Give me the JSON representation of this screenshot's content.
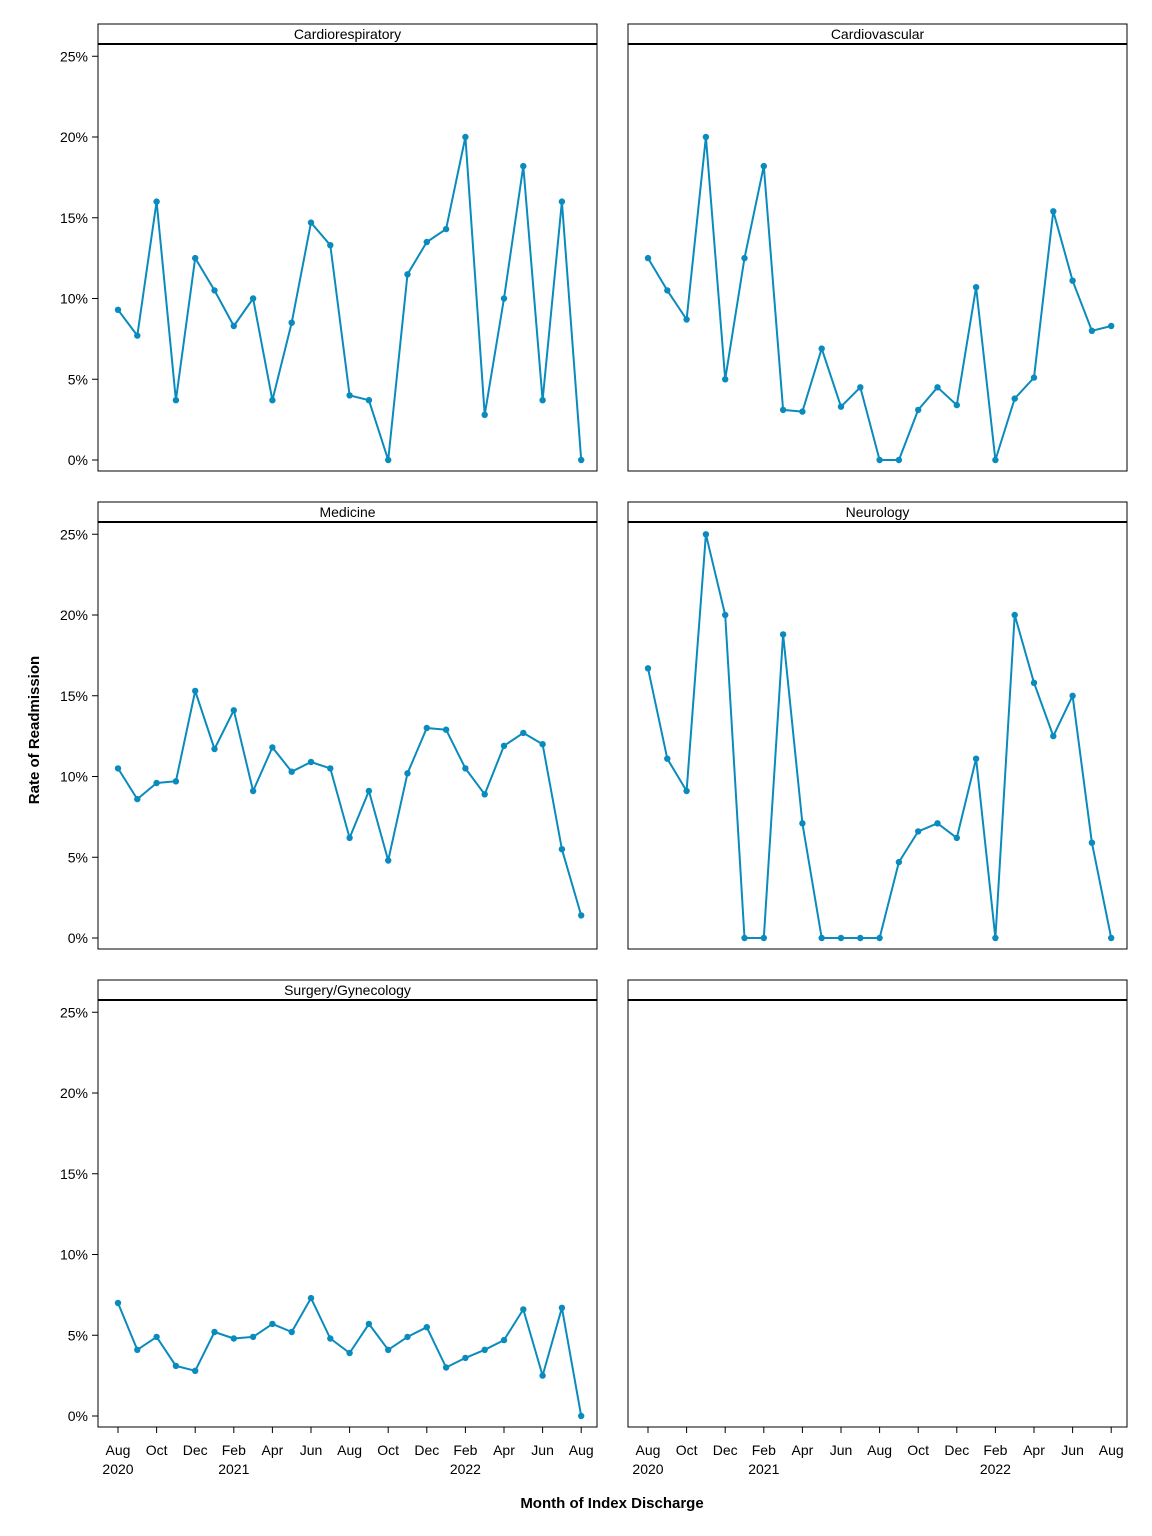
{
  "chart_data": {
    "type": "line",
    "ylabel": "Rate of Readmission",
    "xlabel": "Month of Index Discharge",
    "ylim": [
      0,
      25
    ],
    "y_ticks": [
      "0%",
      "5%",
      "10%",
      "15%",
      "20%",
      "25%"
    ],
    "y_tick_values": [
      0,
      5,
      10,
      15,
      20,
      25
    ],
    "x": [
      "2020-08",
      "2020-09",
      "2020-10",
      "2020-11",
      "2020-12",
      "2021-01",
      "2021-02",
      "2021-03",
      "2021-04",
      "2021-05",
      "2021-06",
      "2021-07",
      "2021-08",
      "2021-09",
      "2021-10",
      "2021-11",
      "2021-12",
      "2022-01",
      "2022-02",
      "2022-03",
      "2022-04",
      "2022-05",
      "2022-06",
      "2022-07",
      "2022-08"
    ],
    "x_ticks": [
      {
        "index": 0,
        "month": "Aug",
        "year": "2020"
      },
      {
        "index": 2,
        "month": "Oct",
        "year": ""
      },
      {
        "index": 4,
        "month": "Dec",
        "year": ""
      },
      {
        "index": 6,
        "month": "Feb",
        "year": "2021"
      },
      {
        "index": 8,
        "month": "Apr",
        "year": ""
      },
      {
        "index": 10,
        "month": "Jun",
        "year": ""
      },
      {
        "index": 12,
        "month": "Aug",
        "year": ""
      },
      {
        "index": 14,
        "month": "Oct",
        "year": ""
      },
      {
        "index": 16,
        "month": "Dec",
        "year": ""
      },
      {
        "index": 18,
        "month": "Feb",
        "year": "2022"
      },
      {
        "index": 20,
        "month": "Apr",
        "year": ""
      },
      {
        "index": 22,
        "month": "Jun",
        "year": ""
      },
      {
        "index": 24,
        "month": "Aug",
        "year": ""
      }
    ],
    "series_color": "#0a8bbd",
    "panels": [
      {
        "name": "Cardiorespiratory",
        "values": [
          9.3,
          7.7,
          16.0,
          3.7,
          12.5,
          10.5,
          8.3,
          10.0,
          3.7,
          8.5,
          14.7,
          13.3,
          4.0,
          3.7,
          0.0,
          11.5,
          13.5,
          14.3,
          20.0,
          2.8,
          10.0,
          18.2,
          3.7,
          16.0,
          0.0
        ]
      },
      {
        "name": "Cardiovascular",
        "values": [
          12.5,
          10.5,
          8.7,
          20.0,
          5.0,
          12.5,
          18.2,
          3.1,
          3.0,
          6.9,
          3.3,
          4.5,
          0.0,
          0.0,
          3.1,
          4.5,
          3.4,
          10.7,
          0.0,
          3.8,
          5.1,
          15.4,
          11.1,
          8.0,
          8.3
        ]
      },
      {
        "name": "Medicine",
        "values": [
          10.5,
          8.6,
          9.6,
          9.7,
          15.3,
          11.7,
          14.1,
          9.1,
          11.8,
          10.3,
          10.9,
          10.5,
          6.2,
          9.1,
          4.8,
          10.2,
          13.0,
          12.9,
          10.5,
          8.9,
          11.9,
          12.7,
          12.0,
          5.5,
          1.4
        ]
      },
      {
        "name": "Neurology",
        "values": [
          16.7,
          11.1,
          9.1,
          25.0,
          20.0,
          0.0,
          0.0,
          18.8,
          7.1,
          0.0,
          0.0,
          0.0,
          0.0,
          4.7,
          6.6,
          7.1,
          6.2,
          11.1,
          0.0,
          20.0,
          15.8,
          12.5,
          15.0,
          5.9,
          0.0
        ]
      },
      {
        "name": "Surgery/Gynecology",
        "values": [
          7.0,
          4.1,
          4.9,
          3.1,
          2.8,
          5.2,
          4.8,
          4.9,
          5.7,
          5.2,
          7.3,
          4.8,
          3.9,
          5.7,
          4.1,
          4.9,
          5.5,
          3.0,
          3.6,
          4.1,
          4.7,
          6.6,
          2.5,
          6.7,
          0.0
        ]
      },
      {
        "name": "",
        "values": []
      }
    ]
  }
}
